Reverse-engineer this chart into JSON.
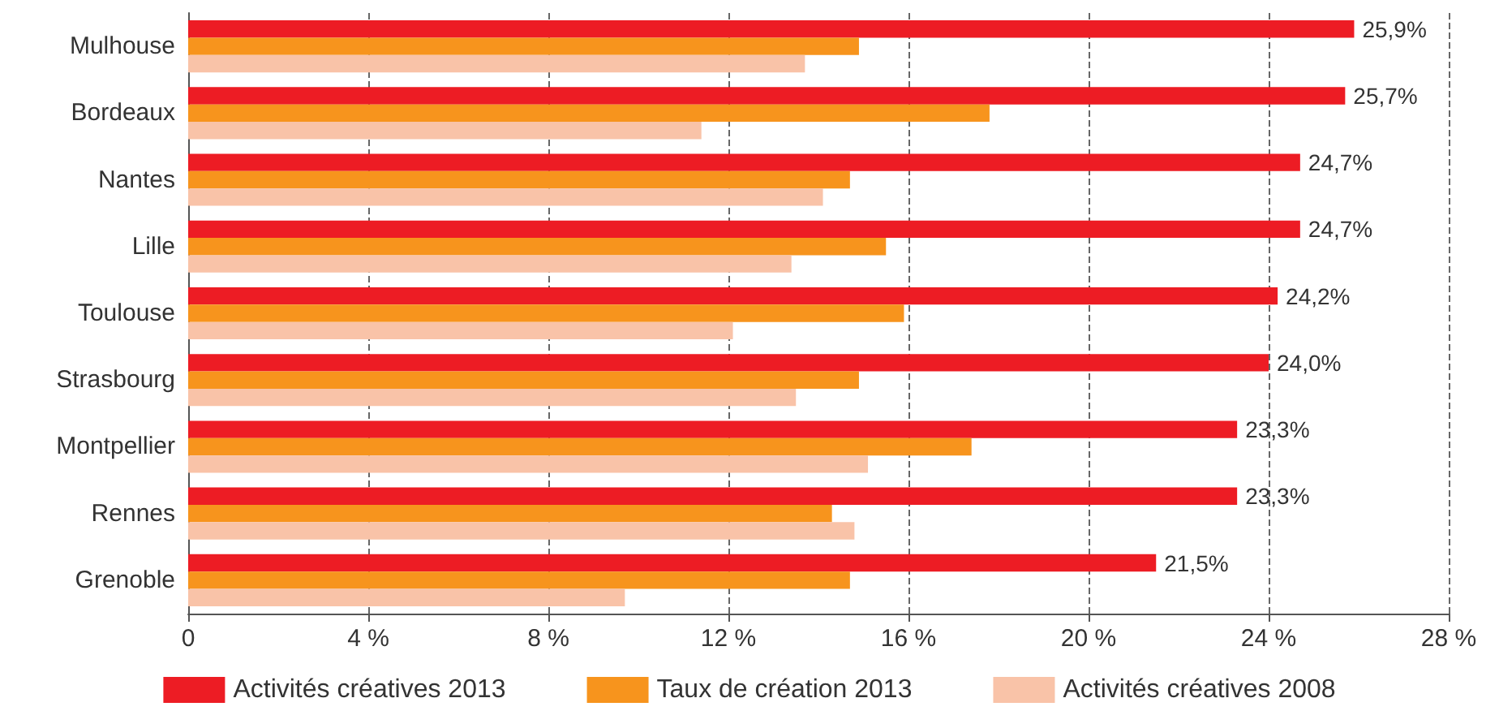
{
  "chart_data": {
    "type": "bar",
    "orientation": "horizontal",
    "categories": [
      "Mulhouse",
      "Bordeaux",
      "Nantes",
      "Lille",
      "Toulouse",
      "Strasbourg",
      "Montpellier",
      "Rennes",
      "Grenoble"
    ],
    "series": [
      {
        "name": "Activités créatives 2013",
        "color": "#ed1c24",
        "values": [
          25.9,
          25.7,
          24.7,
          24.7,
          24.2,
          24.0,
          23.3,
          23.3,
          21.5
        ],
        "value_labels": [
          "25,9%",
          "25,7%",
          "24,7%",
          "24,7%",
          "24,2%",
          "24,0%",
          "23,3%",
          "23,3%",
          "21,5%"
        ]
      },
      {
        "name": "Taux de création 2013",
        "color": "#f7941d",
        "values": [
          14.9,
          17.8,
          14.7,
          15.5,
          15.9,
          14.9,
          17.4,
          14.3,
          14.7
        ]
      },
      {
        "name": "Activités créatives 2008",
        "color": "#f9c3a8",
        "values": [
          13.7,
          11.4,
          14.1,
          13.4,
          12.1,
          13.5,
          15.1,
          14.8,
          9.7
        ]
      }
    ],
    "xlim": [
      0,
      28
    ],
    "xticks": [
      0,
      {
        "value": 4,
        "label": "4 %"
      },
      {
        "value": 8,
        "label": "8 %"
      },
      {
        "value": 12,
        "label": "12 %"
      },
      {
        "value": 16,
        "label": "16 %"
      },
      {
        "value": 20,
        "label": "20 %"
      },
      {
        "value": 24,
        "label": "24 %"
      },
      {
        "value": 28,
        "label": "28 %"
      }
    ],
    "grid": "x",
    "legend": "bottom"
  }
}
